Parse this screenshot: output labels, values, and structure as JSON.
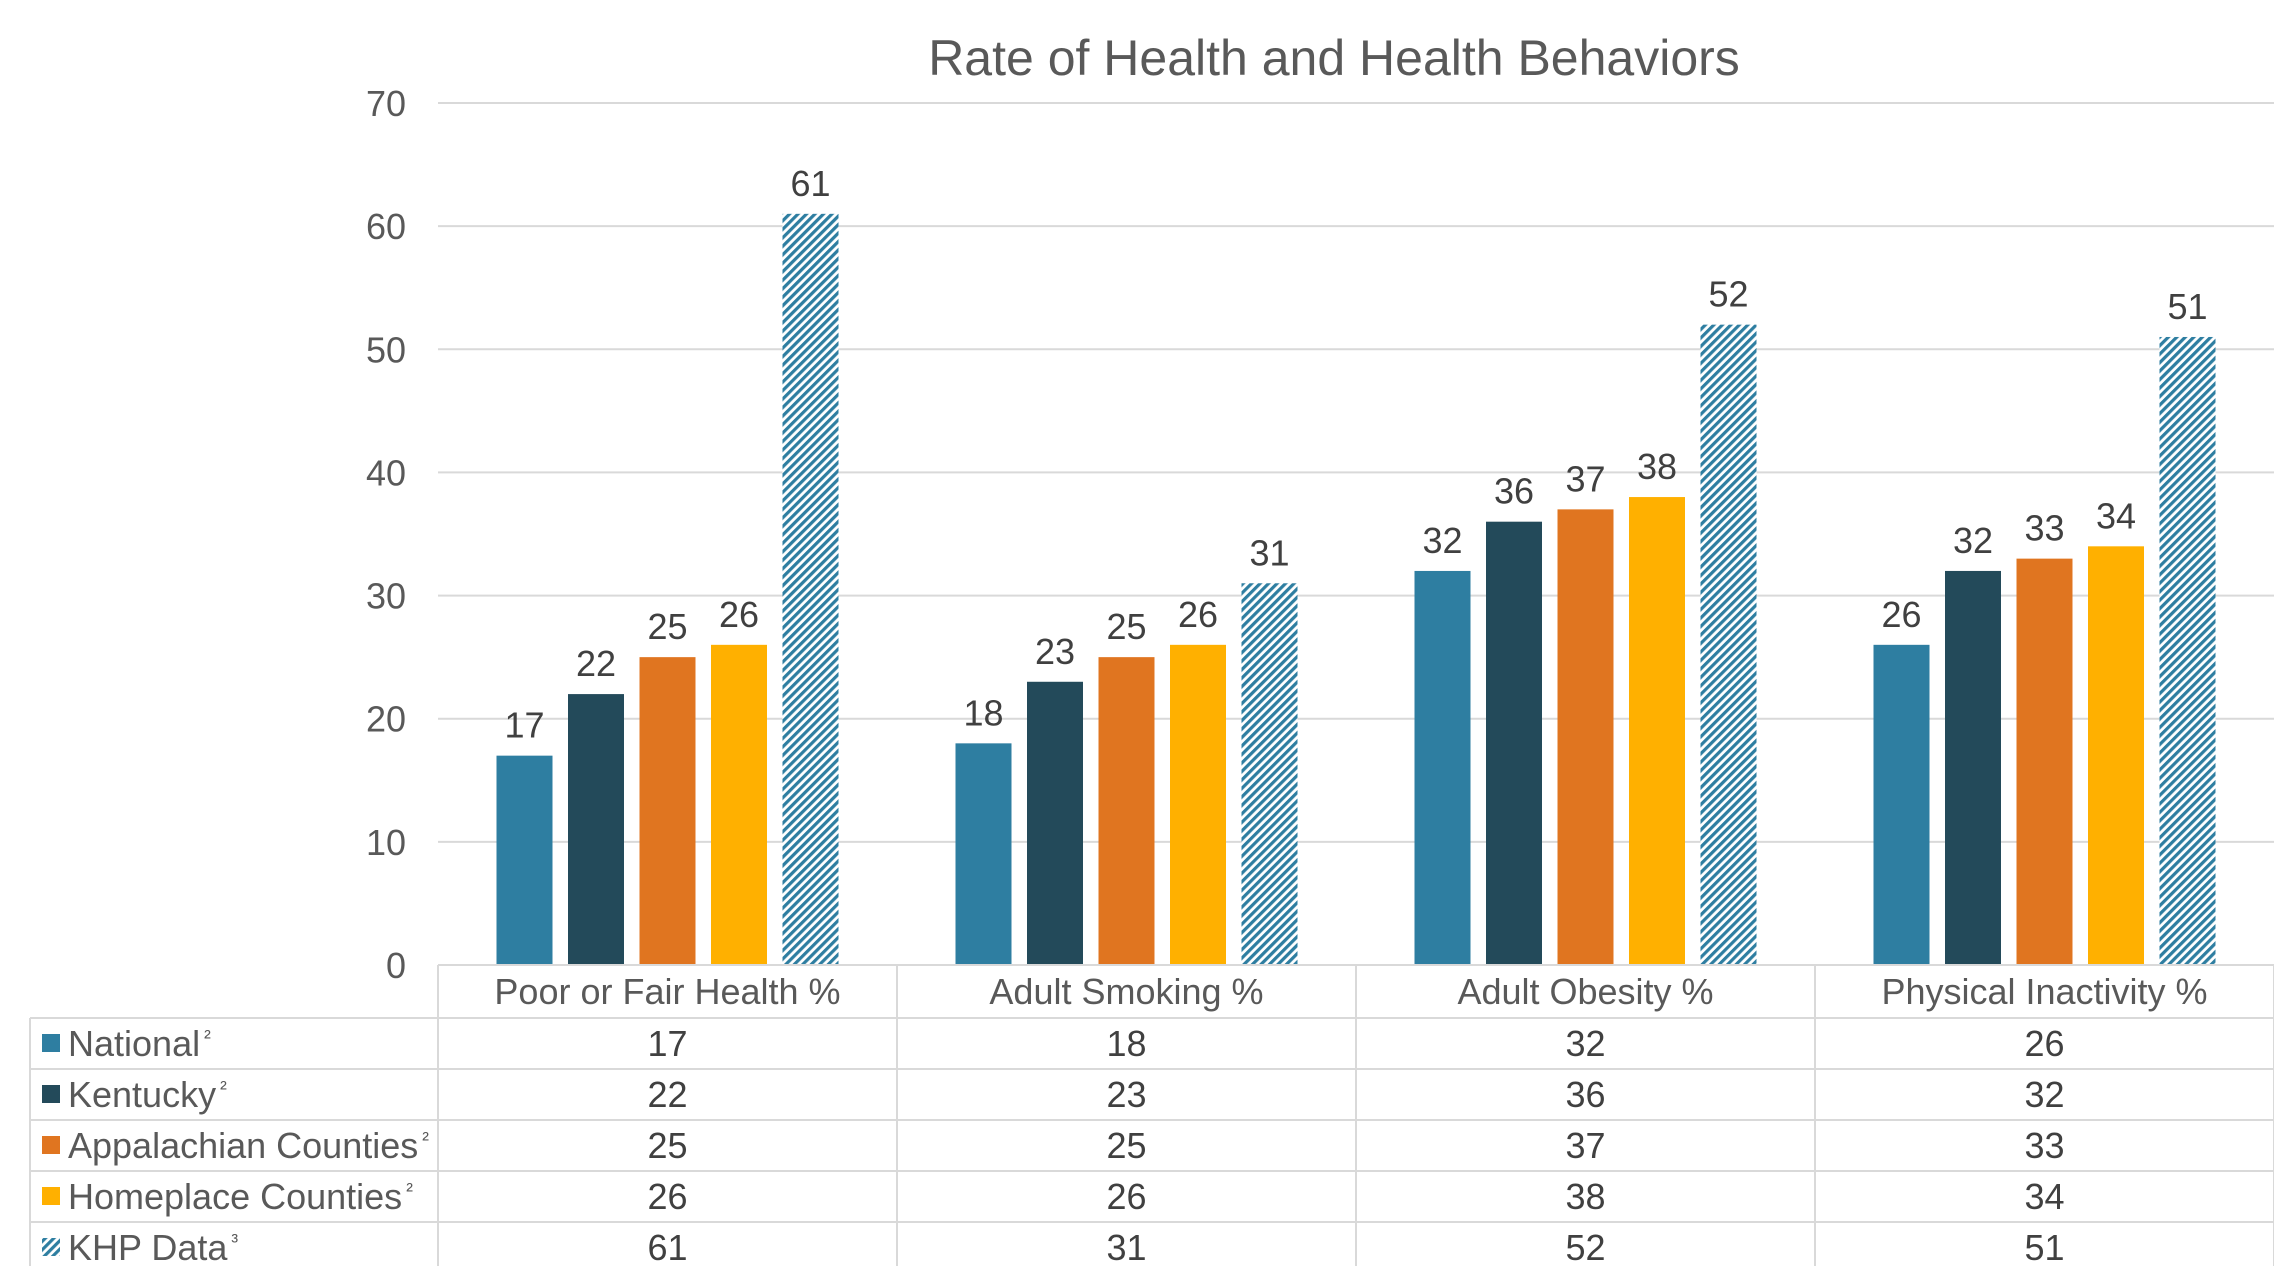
{
  "chart_data": {
    "type": "bar",
    "title": "Rate of Health and Health Behaviors",
    "xlabel": "",
    "ylabel": "",
    "ylim": [
      0,
      70
    ],
    "yticks": [
      0,
      10,
      20,
      30,
      40,
      50,
      60,
      70
    ],
    "grid": true,
    "legend": "data-table-left",
    "categories": [
      "Poor or Fair Health %",
      "Adult Smoking %",
      "Adult Obesity %",
      "Physical Inactivity %"
    ],
    "series": [
      {
        "name": "National",
        "sup": "²",
        "color": "#2e7ea1",
        "pattern": false,
        "values": [
          17,
          18,
          32,
          26
        ]
      },
      {
        "name": "Kentucky",
        "sup": "²",
        "color": "#234a5a",
        "pattern": false,
        "values": [
          22,
          23,
          36,
          32
        ]
      },
      {
        "name": "Appalachian Counties",
        "sup": "²",
        "color": "#e07520",
        "pattern": false,
        "values": [
          25,
          25,
          37,
          33
        ]
      },
      {
        "name": "Homeplace Counties",
        "sup": "²",
        "color": "#ffb000",
        "pattern": false,
        "values": [
          26,
          26,
          38,
          34
        ]
      },
      {
        "name": "KHP Data",
        "sup": "³",
        "color": "#2e7ea1",
        "pattern": true,
        "values": [
          61,
          31,
          52,
          51
        ]
      }
    ]
  }
}
